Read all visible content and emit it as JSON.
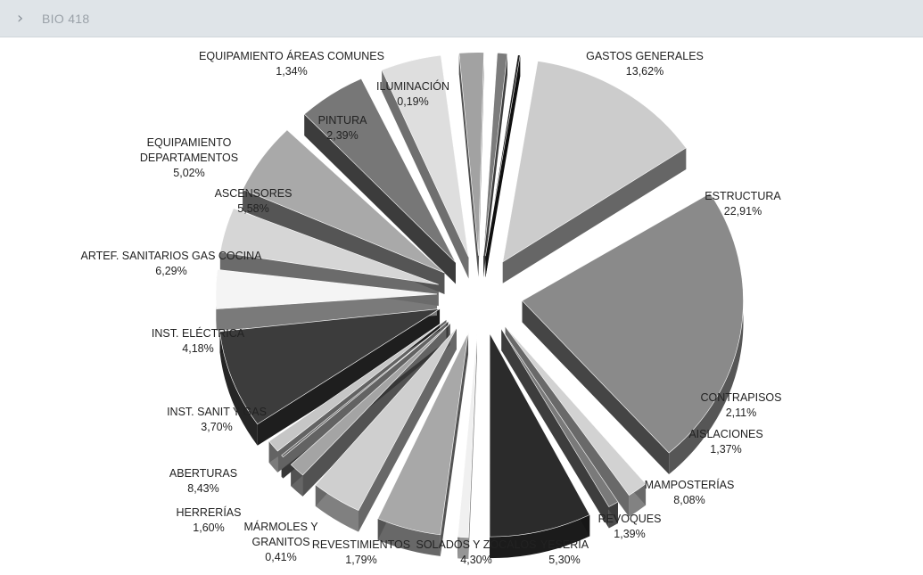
{
  "breadcrumb": {
    "title": "BIO 418",
    "icon": "chevron-right-icon"
  },
  "chart_data": {
    "type": "pie",
    "title": "",
    "exploded": true,
    "three_d": true,
    "slices": [
      {
        "label": "GASTOS GENERALES",
        "value": 13.62,
        "display": "13,62%",
        "color": "#cccccc"
      },
      {
        "label": "ESTRUCTURA",
        "value": 22.91,
        "display": "22,91%",
        "color": "#8a8a8a"
      },
      {
        "label": "CONTRAPISOS",
        "value": 2.11,
        "display": "2,11%",
        "color": "#d2d2d2"
      },
      {
        "label": "AISLACIONES",
        "value": 1.37,
        "display": "1,37%",
        "color": "#7a7a7a"
      },
      {
        "label": "MAMPOSTERÍAS",
        "value": 8.08,
        "display": "8,08%",
        "color": "#2b2b2b"
      },
      {
        "label": "REVOQUES",
        "value": 1.39,
        "display": "1,39%",
        "color": "#f0f0f0"
      },
      {
        "label": "YESERIA",
        "value": 5.3,
        "display": "5,30%",
        "color": "#a8a8a8"
      },
      {
        "label": "SOLADOS Y ZÓCALOS",
        "value": 4.3,
        "display": "4,30%",
        "color": "#cfcfcf"
      },
      {
        "label": "REVESTIMIENTOS",
        "value": 1.79,
        "display": "1,79%",
        "color": "#a4a4a4"
      },
      {
        "label": "MÁRMOLES Y GRANITOS",
        "value": 0.41,
        "display": "0,41%",
        "color": "#6e6e6e"
      },
      {
        "label": "HERRERÍAS",
        "value": 1.6,
        "display": "1,60%",
        "color": "#c6c6c6"
      },
      {
        "label": "ABERTURAS",
        "value": 8.43,
        "display": "8,43%",
        "color": "#3c3c3c"
      },
      {
        "label": "INST. SANIT Y GAS",
        "value": 3.7,
        "display": "3,70%",
        "color": "#f4f4f4"
      },
      {
        "label": "INST. ELÉCTRICA",
        "value": 4.18,
        "display": "4,18%",
        "color": "#d6d6d6"
      },
      {
        "label": "ARTEF. SANITARIOS GAS COCINA",
        "value": 6.29,
        "display": "6,29%",
        "color": "#a9a9a9"
      },
      {
        "label": "ASCENSORES",
        "value": 5.58,
        "display": "5,58%",
        "color": "#777777"
      },
      {
        "label": "EQUIPAMIENTO DEPARTAMENTOS",
        "value": 5.02,
        "display": "5,02%",
        "color": "#dedede"
      },
      {
        "label": "PINTURA",
        "value": 2.39,
        "display": "2,39%",
        "color": "#a2a2a2"
      },
      {
        "label": "EQUIPAMIENTO ÁREAS COMUNES",
        "value": 1.34,
        "display": "1,34%",
        "color": "#7c7c7c"
      },
      {
        "label": "ILUMINACIÓN",
        "value": 0.19,
        "display": "0,19%",
        "color": "#1e1e1e"
      }
    ],
    "labels": [
      {
        "lines": [
          "GASTOS GENERALES"
        ],
        "value": "13,62%"
      },
      {
        "lines": [
          "ESTRUCTURA"
        ],
        "value": "22,91%"
      },
      {
        "lines": [
          "CONTRAPISOS"
        ],
        "value": "2,11%"
      },
      {
        "lines": [
          "AISLACIONES"
        ],
        "value": "1,37%"
      },
      {
        "lines": [
          "MAMPOSTERÍAS"
        ],
        "value": "8,08%"
      },
      {
        "lines": [
          "REVOQUES"
        ],
        "value": "1,39%"
      },
      {
        "lines": [
          "YESERIA"
        ],
        "value": "5,30%"
      },
      {
        "lines": [
          "SOLADOS Y ZÓCALOS"
        ],
        "value": "4,30%"
      },
      {
        "lines": [
          "REVESTIMIENTOS"
        ],
        "value": "1,79%"
      },
      {
        "lines": [
          "MÁRMOLES Y",
          "GRANITOS"
        ],
        "value": "0,41%"
      },
      {
        "lines": [
          "HERRERÍAS"
        ],
        "value": "1,60%"
      },
      {
        "lines": [
          "ABERTURAS"
        ],
        "value": "8,43%"
      },
      {
        "lines": [
          "INST. SANIT Y GAS"
        ],
        "value": "3,70%"
      },
      {
        "lines": [
          "INST. ELÉCTRICA"
        ],
        "value": "4,18%"
      },
      {
        "lines": [
          "ARTEF. SANITARIOS GAS COCINA"
        ],
        "value": "6,29%"
      },
      {
        "lines": [
          "ASCENSORES"
        ],
        "value": "5,58%"
      },
      {
        "lines": [
          "EQUIPAMIENTO",
          "DEPARTAMENTOS"
        ],
        "value": "5,02%"
      },
      {
        "lines": [
          "PINTURA"
        ],
        "value": "2,39%"
      },
      {
        "lines": [
          "EQUIPAMIENTO ÁREAS COMUNES"
        ],
        "value": "1,34%"
      },
      {
        "lines": [
          "ILUMINACIÓN"
        ],
        "value": "0,19%"
      }
    ]
  }
}
